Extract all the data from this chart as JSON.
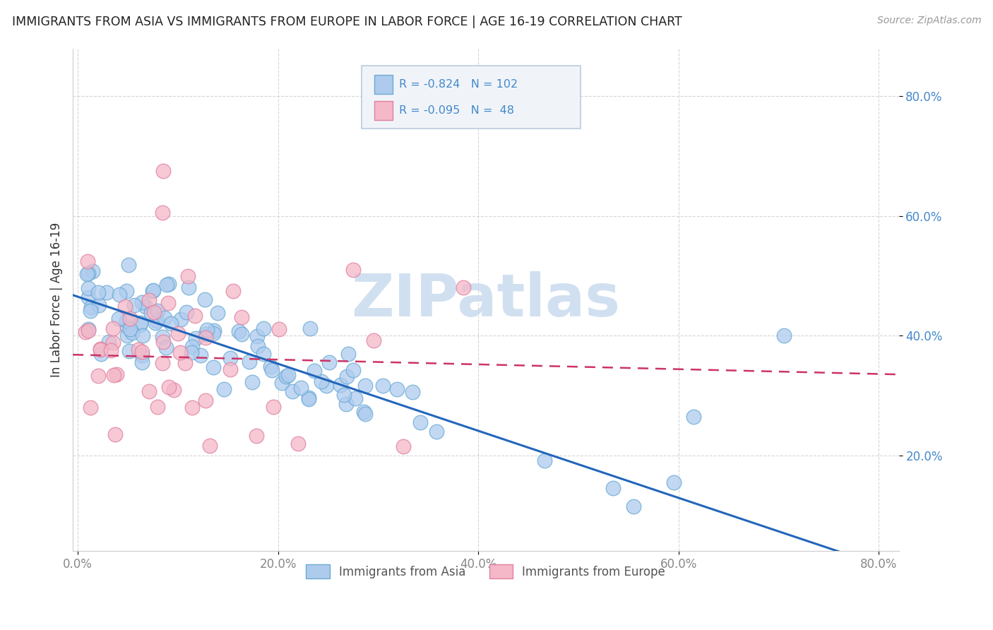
{
  "title": "IMMIGRANTS FROM ASIA VS IMMIGRANTS FROM EUROPE IN LABOR FORCE | AGE 16-19 CORRELATION CHART",
  "source": "Source: ZipAtlas.com",
  "ylabel": "In Labor Force | Age 16-19",
  "xlim": [
    -0.005,
    0.82
  ],
  "ylim": [
    0.04,
    0.88
  ],
  "xtick_labels": [
    "0.0%",
    "20.0%",
    "40.0%",
    "60.0%",
    "80.0%"
  ],
  "xtick_vals": [
    0.0,
    0.2,
    0.4,
    0.6,
    0.8
  ],
  "ytick_labels": [
    "20.0%",
    "40.0%",
    "60.0%",
    "80.0%"
  ],
  "ytick_vals": [
    0.2,
    0.4,
    0.6,
    0.8
  ],
  "grid_color": "#cccccc",
  "background_color": "#ffffff",
  "asia_color": "#aecbee",
  "asia_edge_color": "#6aaad4",
  "europe_color": "#f4b8c8",
  "europe_edge_color": "#e080a0",
  "asia_line_color": "#2266bb",
  "europe_line_color": "#cc3366",
  "watermark_color": "#ccddef",
  "legend_asia_R": "-0.824",
  "legend_asia_N": "102",
  "legend_europe_R": "-0.095",
  "legend_europe_N": "48",
  "tick_color_y": "#4488cc",
  "tick_color_x": "#888888",
  "legend_text_color": "#4488cc",
  "legend_R_color": "#cc3366"
}
